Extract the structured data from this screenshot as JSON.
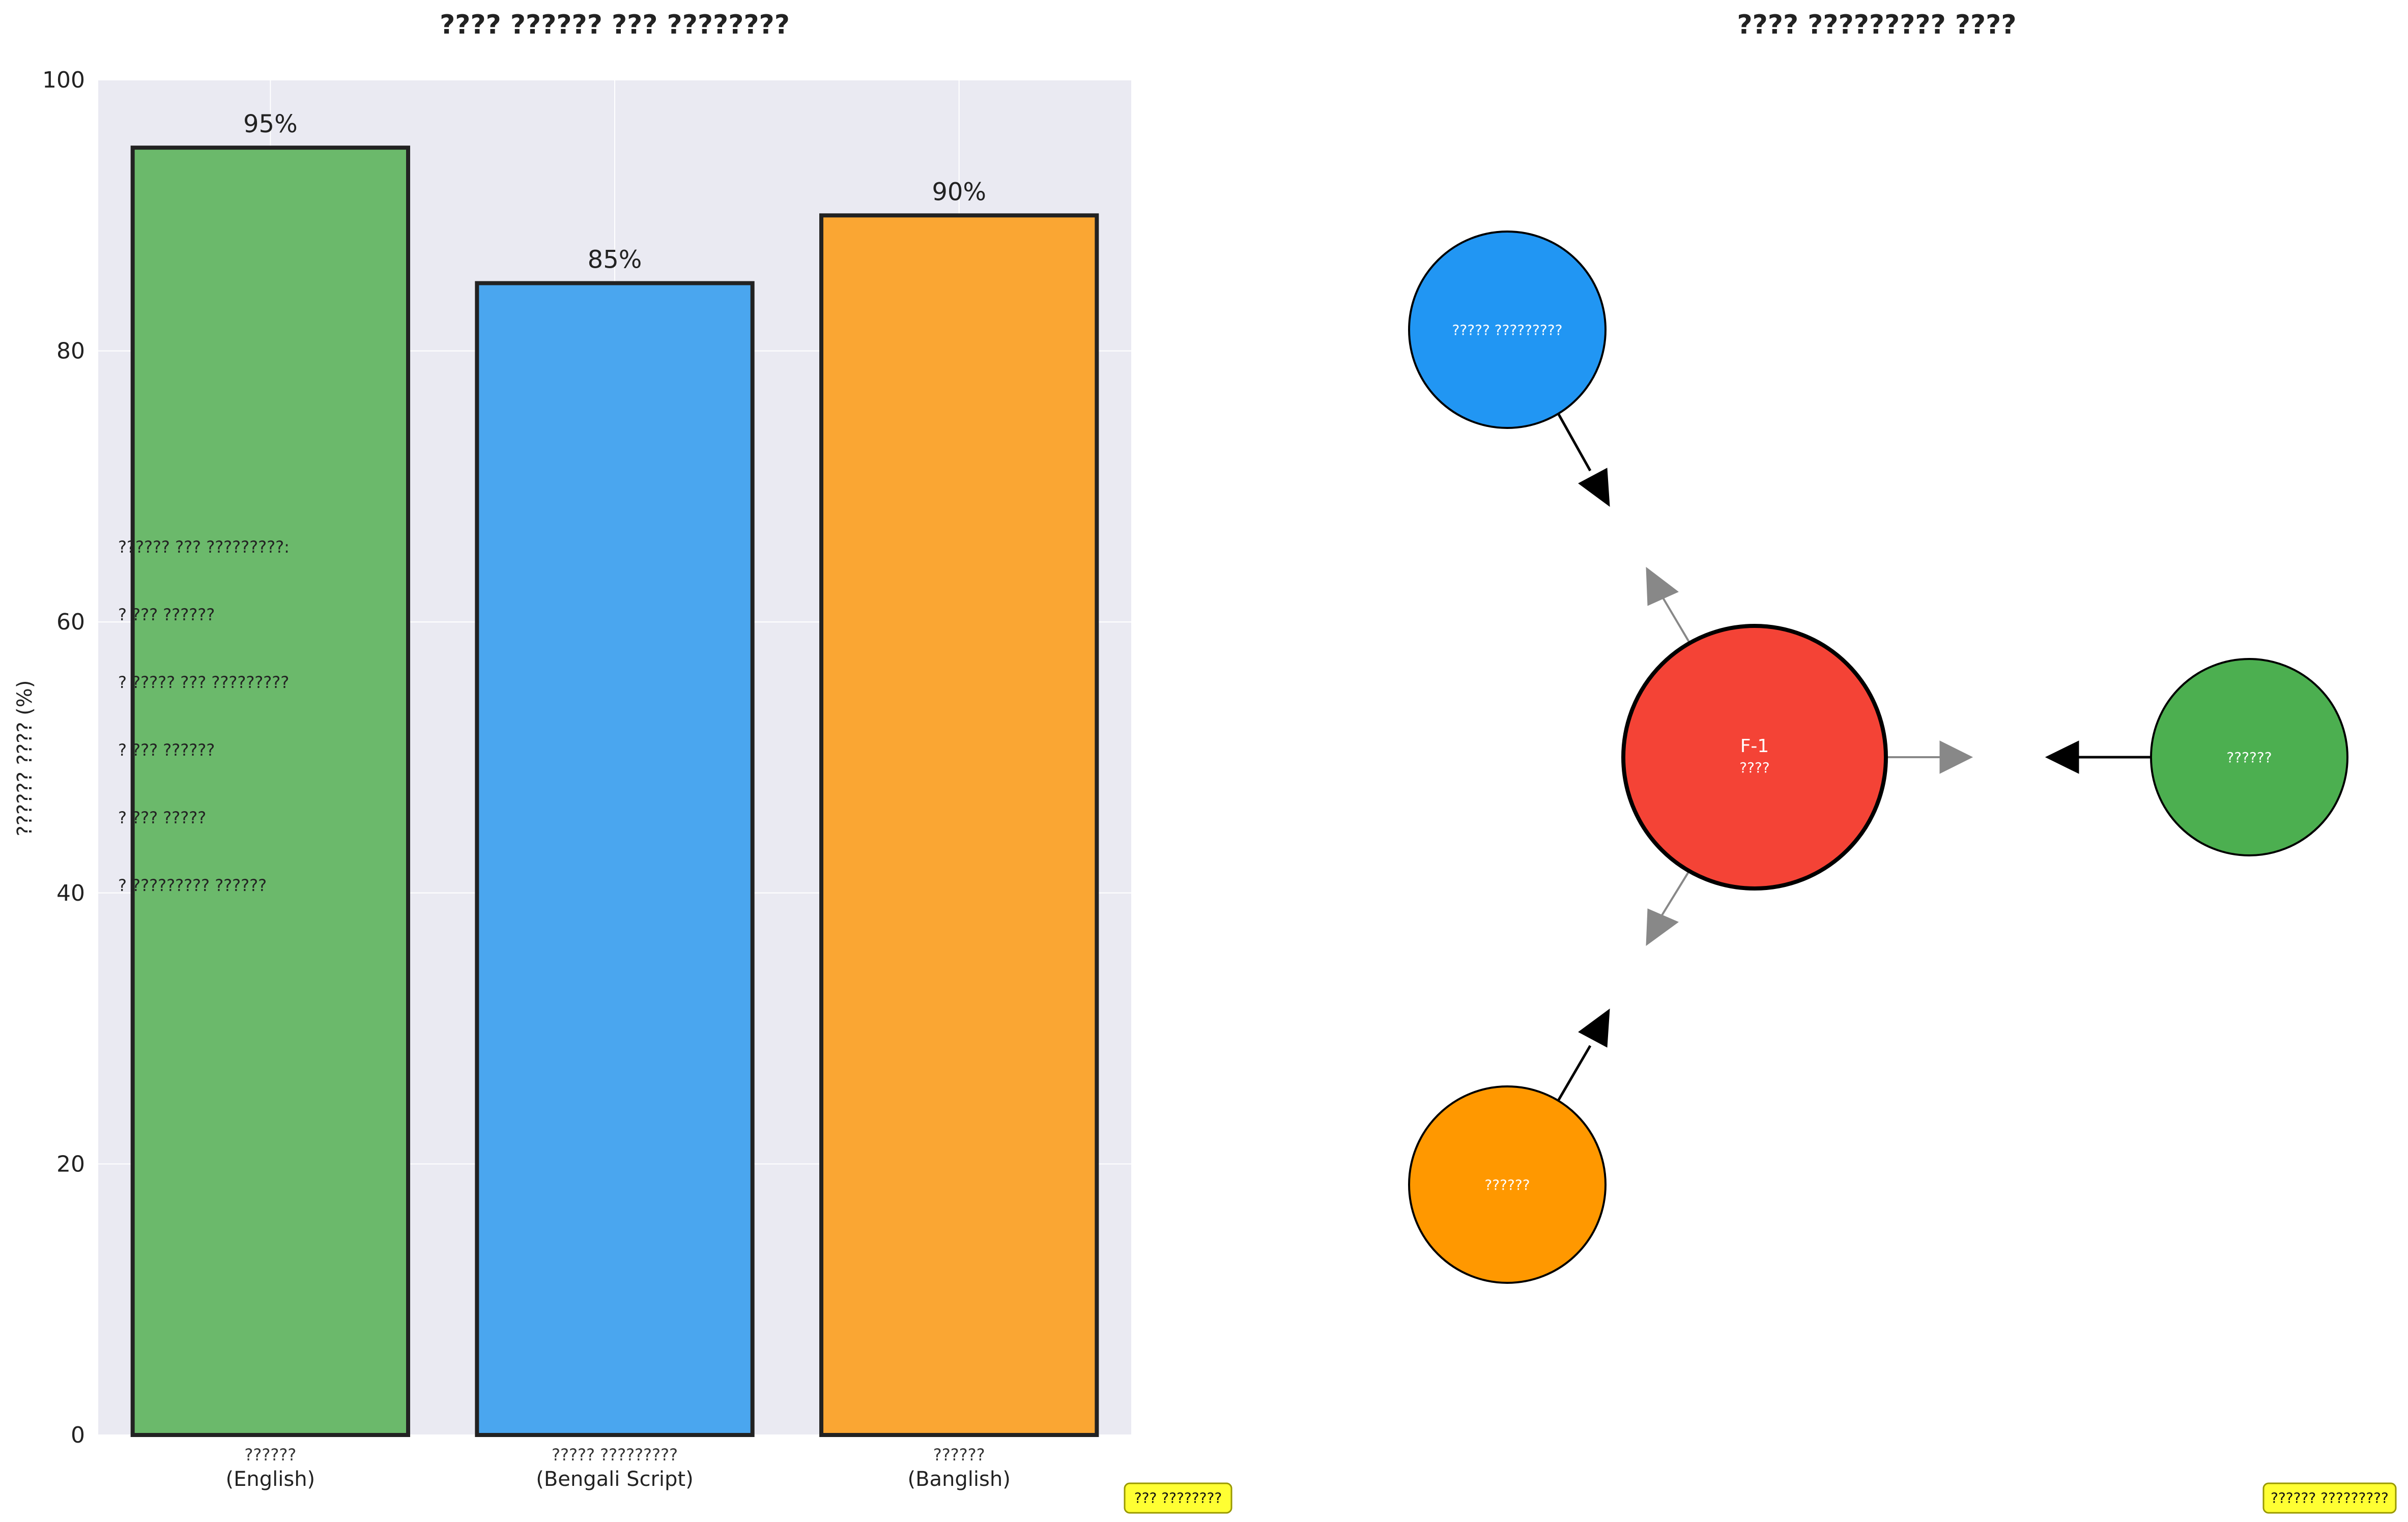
{
  "chart_data": [
    {
      "type": "bar",
      "title": "???? ?????? ??? ????????",
      "ylabel": "?????? ???? (%)",
      "ylim": [
        0,
        100
      ],
      "yticks": [
        0,
        20,
        40,
        60,
        80,
        100
      ],
      "grid": true,
      "categories": [
        {
          "line1": "??????",
          "line2": "(English)"
        },
        {
          "line1": "????? ?????????",
          "line2": "(Bengali Script)"
        },
        {
          "line1": "??????",
          "line2": "(Banglish)"
        }
      ],
      "values": [
        95,
        85,
        90
      ],
      "value_labels": [
        "95%",
        "85%",
        "90%"
      ],
      "colors": [
        "#6bb96b",
        "#4aa6ef",
        "#faa633"
      ],
      "annotation_lines": [
        "?????? ??? ?????????:",
        "? ??? ??????",
        "? ????? ??? ?????????",
        "? ??? ??????",
        "? ??? ?????",
        "? ????????? ??????"
      ],
      "badge": "??? ????????"
    },
    {
      "type": "diagram",
      "title": "???? ????????? ????",
      "center": {
        "line1": "F-1",
        "line2": "????",
        "color": "#f44336"
      },
      "nodes": [
        {
          "label": "????? ?????????",
          "color": "#2196f3"
        },
        {
          "label": "??????",
          "color": "#4caf50"
        },
        {
          "label": "??????",
          "color": "#ff9800"
        }
      ],
      "badge": "?????? ?????????"
    }
  ]
}
